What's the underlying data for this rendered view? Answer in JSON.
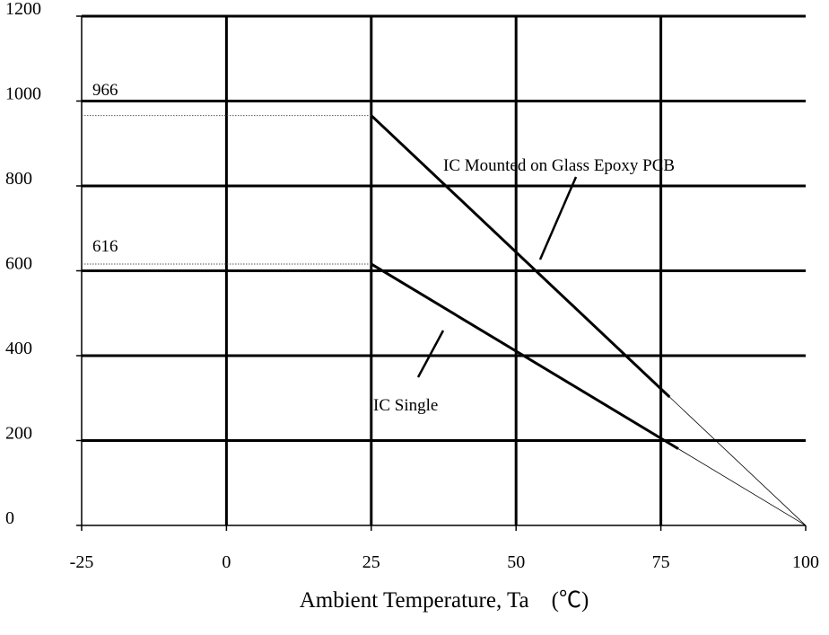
{
  "chart_data": {
    "type": "line",
    "title": "",
    "xlabel": "Ambient Temperature, Ta　(℃)",
    "ylabel": "",
    "xlim": [
      -25,
      100
    ],
    "ylim": [
      0,
      1200
    ],
    "grid": true,
    "x_ticks": [
      "-25",
      "0",
      "25",
      "50",
      "75",
      "100"
    ],
    "y_ticks": [
      "0",
      "200",
      "400",
      "600",
      "800",
      "1000",
      "1200"
    ],
    "series": [
      {
        "name": "IC Mounted on Glass Epoxy PCB",
        "x": [
          -25,
          25,
          100
        ],
        "y": [
          966,
          966,
          0
        ]
      },
      {
        "name": "IC Single",
        "x": [
          -25,
          25,
          100
        ],
        "y": [
          616,
          616,
          0
        ]
      }
    ],
    "annotations": [
      {
        "text": "966",
        "x": -25,
        "y": 966
      },
      {
        "text": "616",
        "x": -25,
        "y": 616
      },
      {
        "text": "IC Mounted on Glass Epoxy PCB"
      },
      {
        "text": "IC Single"
      }
    ]
  }
}
